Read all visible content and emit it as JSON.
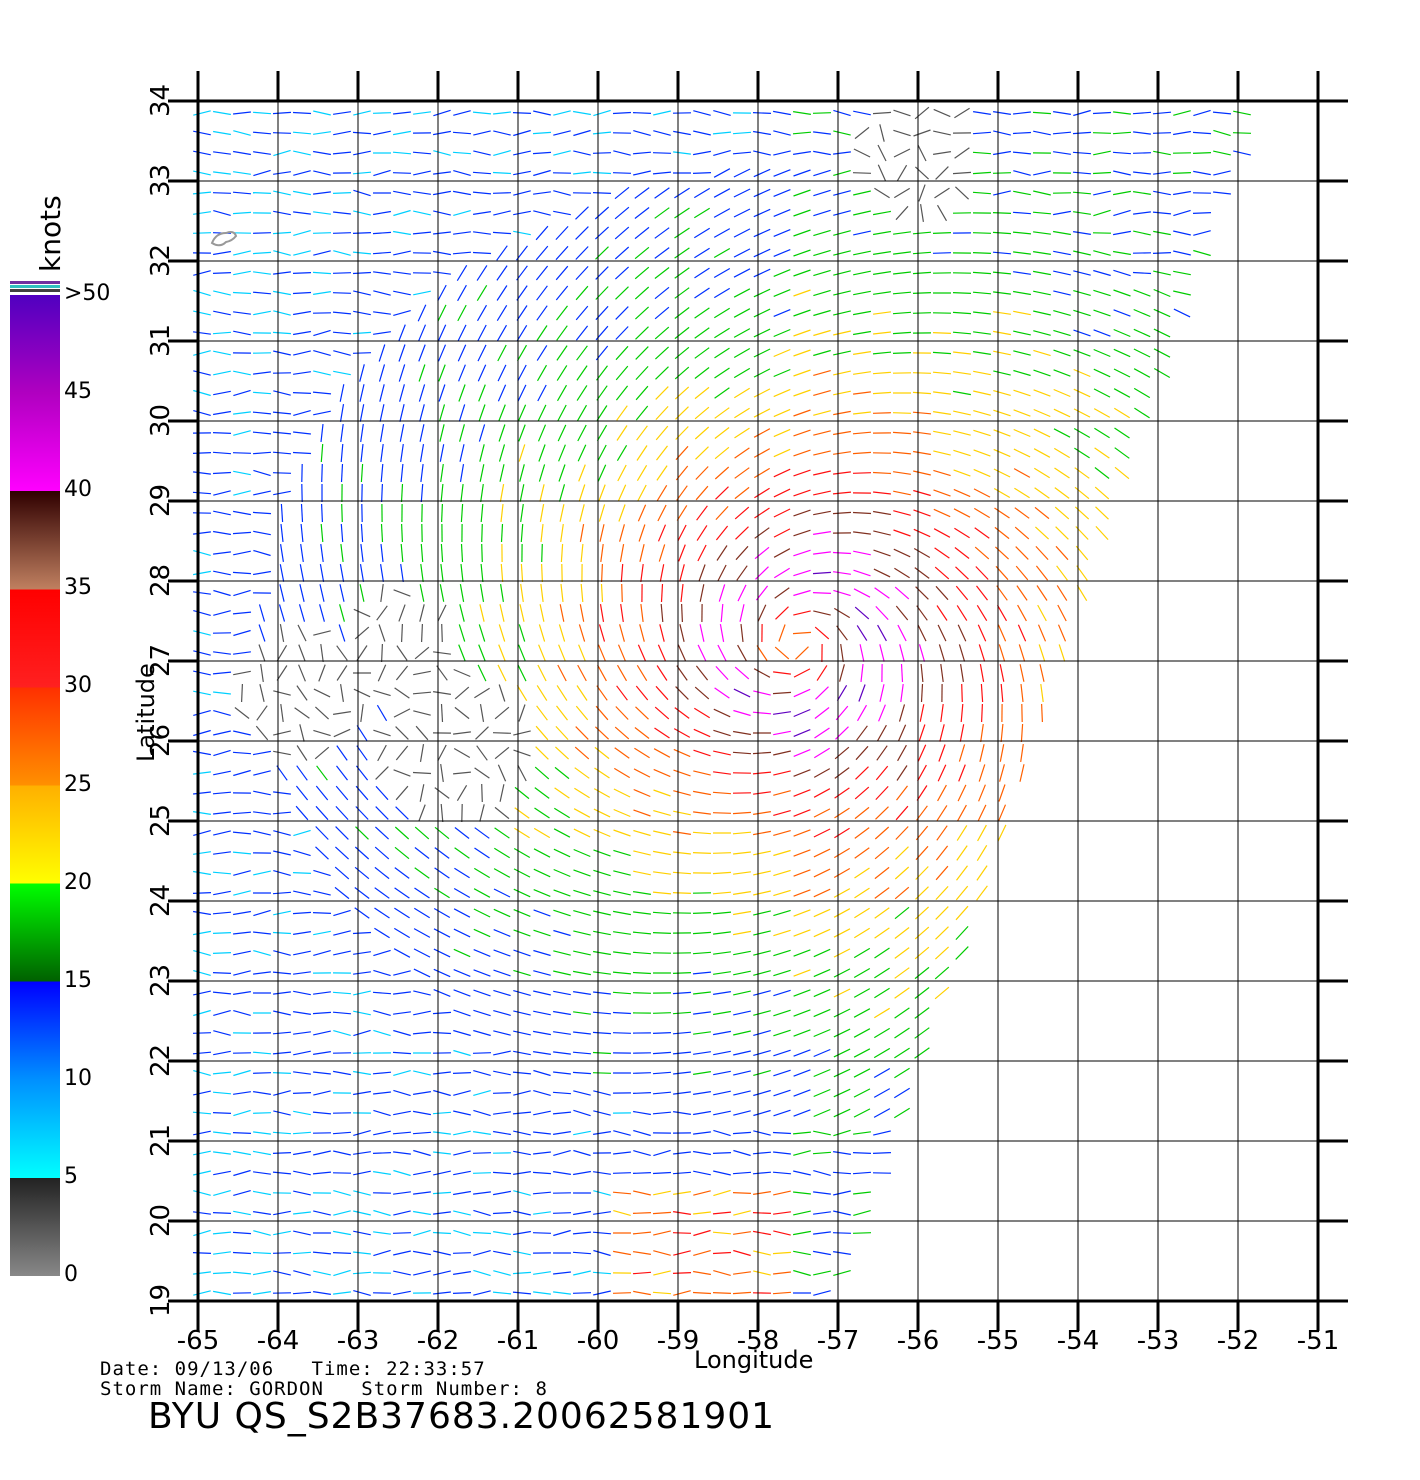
{
  "colorbar": {
    "unit": "knots",
    "labels": [
      {
        "value": 0,
        "text": "0"
      },
      {
        "value": 5,
        "text": "5"
      },
      {
        "value": 10,
        "text": "10"
      },
      {
        "value": 15,
        "text": "15"
      },
      {
        "value": 20,
        "text": "20"
      },
      {
        "value": 25,
        "text": "25"
      },
      {
        "value": 30,
        "text": "30"
      },
      {
        "value": 35,
        "text": "35"
      },
      {
        "value": 40,
        "text": "40"
      },
      {
        "value": 45,
        "text": "45"
      },
      {
        "value": 50,
        "text": ">50"
      }
    ],
    "colors": {
      "0-5": "#555555",
      "5-10": "#00d0ff",
      "10-15": "#0030ff",
      "15-20": "#00cc00",
      "20-25": "#ffd000",
      "25-30": "#ff6000",
      "30-35": "#ff1010",
      "35-40": "#803020",
      "40-45": "#ff00ff",
      "45-50": "#6000c0"
    }
  },
  "axes": {
    "xlabel": "Longitude",
    "ylabel": "Latitude",
    "xlim": [
      -65,
      -51
    ],
    "ylim": [
      19,
      34
    ],
    "xticks": [
      -65,
      -64,
      -63,
      -62,
      -61,
      -60,
      -59,
      -58,
      -57,
      -56,
      -55,
      -54,
      -53,
      -52,
      -51
    ],
    "yticks": [
      19,
      20,
      21,
      22,
      23,
      24,
      25,
      26,
      27,
      28,
      29,
      30,
      31,
      32,
      33,
      34
    ],
    "grid": true
  },
  "info": {
    "date_label": "Date:",
    "date": "09/13/06",
    "time_label": "Time:",
    "time": "22:33:57",
    "storm_name_label": "Storm Name:",
    "storm_name": "GORDON",
    "storm_number_label": "Storm Number:",
    "storm_number": "8",
    "product": "BYU QS_S2B37683.20062581901"
  },
  "chart_data": {
    "type": "vector-field",
    "variable": "wind speed",
    "units": "knots",
    "storm_center": {
      "lon": -57.5,
      "lat": 27.2
    },
    "peak_speed_knots": 45,
    "swath_east_edge": [
      [
        -57.0,
        19
      ],
      [
        -55.2,
        24
      ],
      [
        -53.9,
        28
      ],
      [
        -52.8,
        31
      ],
      [
        -51.7,
        34
      ]
    ],
    "island": {
      "lon": -64.7,
      "lat": 32.3
    }
  }
}
